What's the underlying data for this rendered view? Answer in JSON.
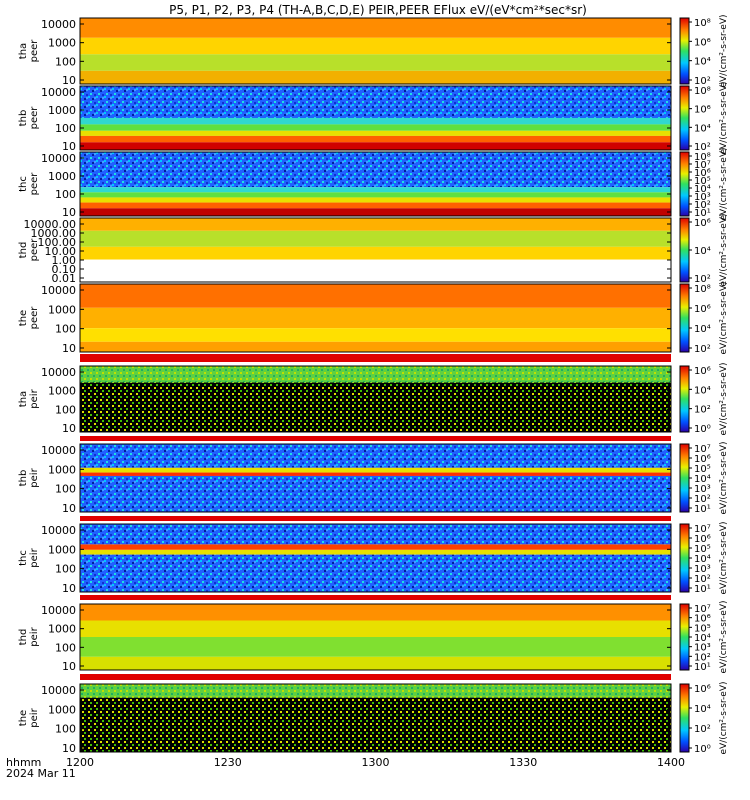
{
  "title": "P5, P1, P2, P3, P4 (TH-A,B,C,D,E) PEIR,PEER EFlux eV/(eV*cm²*sec*sr)",
  "footer": {
    "axis_label": "hhmm",
    "date": "2024 Mar 11",
    "x_ticks": [
      "1200",
      "1230",
      "1300",
      "1330",
      "1400"
    ]
  },
  "chart_data": [
    {
      "type": "heatmap",
      "probe": "tha",
      "species": "peer",
      "ylabel": [
        "tha",
        "peer"
      ],
      "yscale": "log",
      "yticks": [
        "10000",
        "1000",
        "100",
        "10"
      ],
      "colorbar_ticks": [
        "10⁸",
        "10⁶",
        "10⁴",
        "10²"
      ],
      "colorbar_label": "eV/(cm²-s-sr-eV)"
    },
    {
      "type": "heatmap",
      "probe": "thb",
      "species": "peer",
      "ylabel": [
        "thb",
        "peer"
      ],
      "yscale": "log",
      "yticks": [
        "10000",
        "1000",
        "100",
        "10"
      ],
      "colorbar_ticks": [
        "10⁸",
        "10⁶",
        "10⁴",
        "10²"
      ],
      "colorbar_label": "eV/(cm²-s-sr-eV)"
    },
    {
      "type": "heatmap",
      "probe": "thc",
      "species": "peer",
      "ylabel": [
        "thc",
        "peer"
      ],
      "yscale": "log",
      "yticks": [
        "10000",
        "1000",
        "100",
        "10"
      ],
      "colorbar_ticks": [
        "10⁸",
        "10⁷",
        "10⁶",
        "10⁵",
        "10⁴",
        "10³",
        "10²",
        "10¹"
      ],
      "colorbar_label": "eV/(cm²-s-sr-eV)"
    },
    {
      "type": "heatmap",
      "probe": "thd",
      "species": "peer",
      "ylabel": [
        "thd",
        "peer"
      ],
      "yscale": "log",
      "yticks": [
        "10000.00",
        "1000.00",
        "100.00",
        "10.00",
        "1.00",
        "0.10",
        "0.01"
      ],
      "colorbar_ticks": [
        "10⁶",
        "10⁴",
        "10²"
      ],
      "colorbar_label": "eV/(cm²-s-sr-eV)"
    },
    {
      "type": "heatmap",
      "probe": "the",
      "species": "peer",
      "ylabel": [
        "the",
        "peer"
      ],
      "yscale": "log",
      "yticks": [
        "10000",
        "1000",
        "100",
        "10"
      ],
      "colorbar_ticks": [
        "10⁸",
        "10⁶",
        "10⁴",
        "10²"
      ],
      "colorbar_label": "eV/(cm²-s-sr-eV)"
    },
    {
      "type": "heatmap",
      "probe": "tha",
      "species": "peir",
      "ylabel": [
        "tha",
        "peir"
      ],
      "yscale": "log",
      "yticks": [
        "10000",
        "1000",
        "100",
        "10"
      ],
      "colorbar_ticks": [
        "10⁶",
        "10⁴",
        "10²",
        "10⁰"
      ],
      "colorbar_label": "eV/(cm²-s-sr-eV)"
    },
    {
      "type": "heatmap",
      "probe": "thb",
      "species": "peir",
      "ylabel": [
        "thb",
        "peir"
      ],
      "yscale": "log",
      "yticks": [
        "10000",
        "1000",
        "100",
        "10"
      ],
      "colorbar_ticks": [
        "10⁷",
        "10⁶",
        "10⁵",
        "10⁴",
        "10³",
        "10²",
        "10¹"
      ],
      "colorbar_label": "eV/(cm²-s-sr-eV)"
    },
    {
      "type": "heatmap",
      "probe": "thc",
      "species": "peir",
      "ylabel": [
        "thc",
        "peir"
      ],
      "yscale": "log",
      "yticks": [
        "10000",
        "1000",
        "100",
        "10"
      ],
      "colorbar_ticks": [
        "10⁷",
        "10⁶",
        "10⁵",
        "10⁴",
        "10³",
        "10²",
        "10¹"
      ],
      "colorbar_label": "eV/(cm²-s-sr-eV)"
    },
    {
      "type": "heatmap",
      "probe": "thd",
      "species": "peir",
      "ylabel": [
        "thd",
        "peir"
      ],
      "yscale": "log",
      "yticks": [
        "10000",
        "1000",
        "100",
        "10"
      ],
      "colorbar_ticks": [
        "10⁷",
        "10⁶",
        "10⁵",
        "10⁴",
        "10³",
        "10²",
        "10¹"
      ],
      "colorbar_label": "eV/(cm²-s-sr-eV)"
    },
    {
      "type": "heatmap",
      "probe": "the",
      "species": "peir",
      "ylabel": [
        "the",
        "peir"
      ],
      "yscale": "log",
      "yticks": [
        "10000",
        "1000",
        "100",
        "10"
      ],
      "colorbar_ticks": [
        "10⁶",
        "10⁴",
        "10²",
        "10⁰"
      ],
      "colorbar_label": "eV/(cm²-s-sr-eV)"
    }
  ]
}
